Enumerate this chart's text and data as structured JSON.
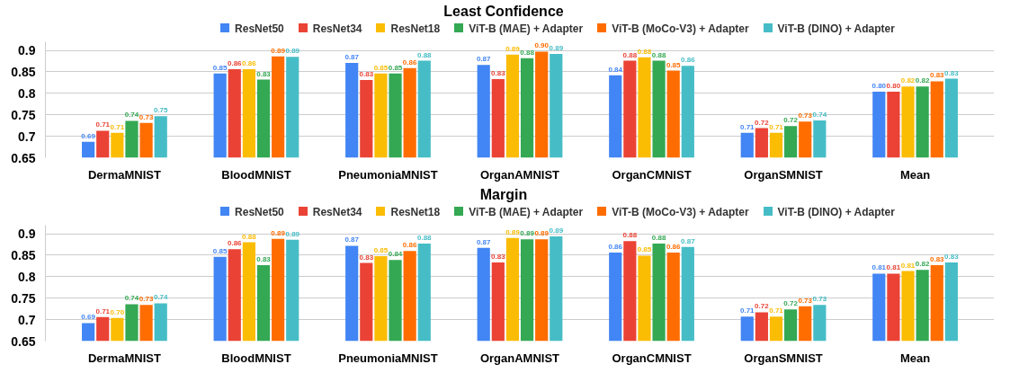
{
  "chart_data": [
    {
      "type": "bar",
      "title": "Least Confidence",
      "categories": [
        "DermaMNIST",
        "BloodMNIST",
        "PneumoniaMNIST",
        "OrganAMNIST",
        "OrganCMNIST",
        "OrganSMNIST",
        "Mean"
      ],
      "ylim": [
        0.65,
        0.92
      ],
      "yticks": [
        0.65,
        0.7,
        0.75,
        0.8,
        0.85,
        0.9
      ],
      "grid": "y",
      "legend": "top",
      "series": [
        {
          "name": "ResNet50",
          "color": "#4285f4",
          "values": [
            0.687,
            0.846,
            0.871,
            0.866,
            0.842,
            0.708,
            0.804
          ],
          "value_labels": [
            "0.69",
            "0.85",
            "0.87",
            "0.87",
            "0.84",
            "0.71",
            "0.80"
          ]
        },
        {
          "name": "ResNet34",
          "color": "#ea4335",
          "values": [
            0.713,
            0.856,
            0.831,
            0.833,
            0.876,
            0.719,
            0.804
          ],
          "value_labels": [
            "0.71",
            "0.86",
            "0.83",
            "0.83",
            "0.88",
            "0.72",
            "0.80"
          ]
        },
        {
          "name": "ResNet18",
          "color": "#fbbc04",
          "values": [
            0.708,
            0.856,
            0.846,
            0.89,
            0.884,
            0.708,
            0.816
          ],
          "value_labels": [
            "0.71",
            "0.86",
            "0.85",
            "0.89",
            "0.88",
            "0.71",
            "0.82"
          ]
        },
        {
          "name": "ViT-B (MAE) + Adapter",
          "color": "#34a853",
          "values": [
            0.736,
            0.832,
            0.846,
            0.882,
            0.876,
            0.724,
            0.816
          ],
          "value_labels": [
            "0.74",
            "0.83",
            "0.85",
            "0.88",
            "0.88",
            "0.72",
            "0.82"
          ]
        },
        {
          "name": "ViT-B (MoCo-V3) + Adapter",
          "color": "#ff6d01",
          "values": [
            0.731,
            0.886,
            0.859,
            0.897,
            0.853,
            0.734,
            0.828
          ],
          "value_labels": [
            "0.73",
            "0.89",
            "0.86",
            "0.90",
            "0.85",
            "0.73",
            "0.83"
          ]
        },
        {
          "name": "ViT-B (DINO) + Adapter",
          "color": "#46bdc6",
          "values": [
            0.747,
            0.885,
            0.876,
            0.892,
            0.864,
            0.737,
            0.834
          ],
          "value_labels": [
            "0.75",
            "0.89",
            "0.88",
            "0.89",
            "0.86",
            "0.74",
            "0.83"
          ]
        }
      ]
    },
    {
      "type": "bar",
      "title": "Margin",
      "categories": [
        "DermaMNIST",
        "BloodMNIST",
        "PneumoniaMNIST",
        "OrganAMNIST",
        "OrganCMNIST",
        "OrganSMNIST",
        "Mean"
      ],
      "ylim": [
        0.65,
        0.92
      ],
      "yticks": [
        0.65,
        0.7,
        0.75,
        0.8,
        0.85,
        0.9
      ],
      "grid": "y",
      "legend": "top",
      "series": [
        {
          "name": "ResNet50",
          "color": "#4285f4",
          "values": [
            0.692,
            0.846,
            0.872,
            0.867,
            0.856,
            0.707,
            0.807
          ],
          "value_labels": [
            "0.69",
            "0.85",
            "0.87",
            "0.87",
            "0.86",
            "0.71",
            "0.81"
          ]
        },
        {
          "name": "ResNet34",
          "color": "#ea4335",
          "values": [
            0.706,
            0.864,
            0.832,
            0.833,
            0.883,
            0.717,
            0.807
          ],
          "value_labels": [
            "0.71",
            "0.86",
            "0.83",
            "0.83",
            "0.88",
            "0.72",
            "0.81"
          ]
        },
        {
          "name": "ResNet18",
          "color": "#fbbc04",
          "values": [
            0.704,
            0.88,
            0.848,
            0.89,
            0.849,
            0.707,
            0.813
          ],
          "value_labels": [
            "0.70",
            "0.88",
            "0.85",
            "0.89",
            "0.85",
            "0.71",
            "0.81"
          ]
        },
        {
          "name": "ViT-B (MAE) + Adapter",
          "color": "#34a853",
          "values": [
            0.736,
            0.827,
            0.839,
            0.887,
            0.877,
            0.724,
            0.816
          ],
          "value_labels": [
            "0.74",
            "0.83",
            "0.84",
            "0.89",
            "0.88",
            "0.72",
            "0.82"
          ]
        },
        {
          "name": "ViT-B (MoCo-V3) + Adapter",
          "color": "#ff6d01",
          "values": [
            0.734,
            0.888,
            0.86,
            0.887,
            0.856,
            0.731,
            0.827
          ],
          "value_labels": [
            "0.73",
            "0.89",
            "0.86",
            "0.89",
            "0.86",
            "0.73",
            "0.83"
          ]
        },
        {
          "name": "ViT-B (DINO) + Adapter",
          "color": "#46bdc6",
          "values": [
            0.738,
            0.886,
            0.877,
            0.894,
            0.869,
            0.734,
            0.833
          ],
          "value_labels": [
            "0.74",
            "0.89",
            "0.88",
            "0.89",
            "0.87",
            "0.73",
            "0.83"
          ]
        }
      ]
    }
  ]
}
